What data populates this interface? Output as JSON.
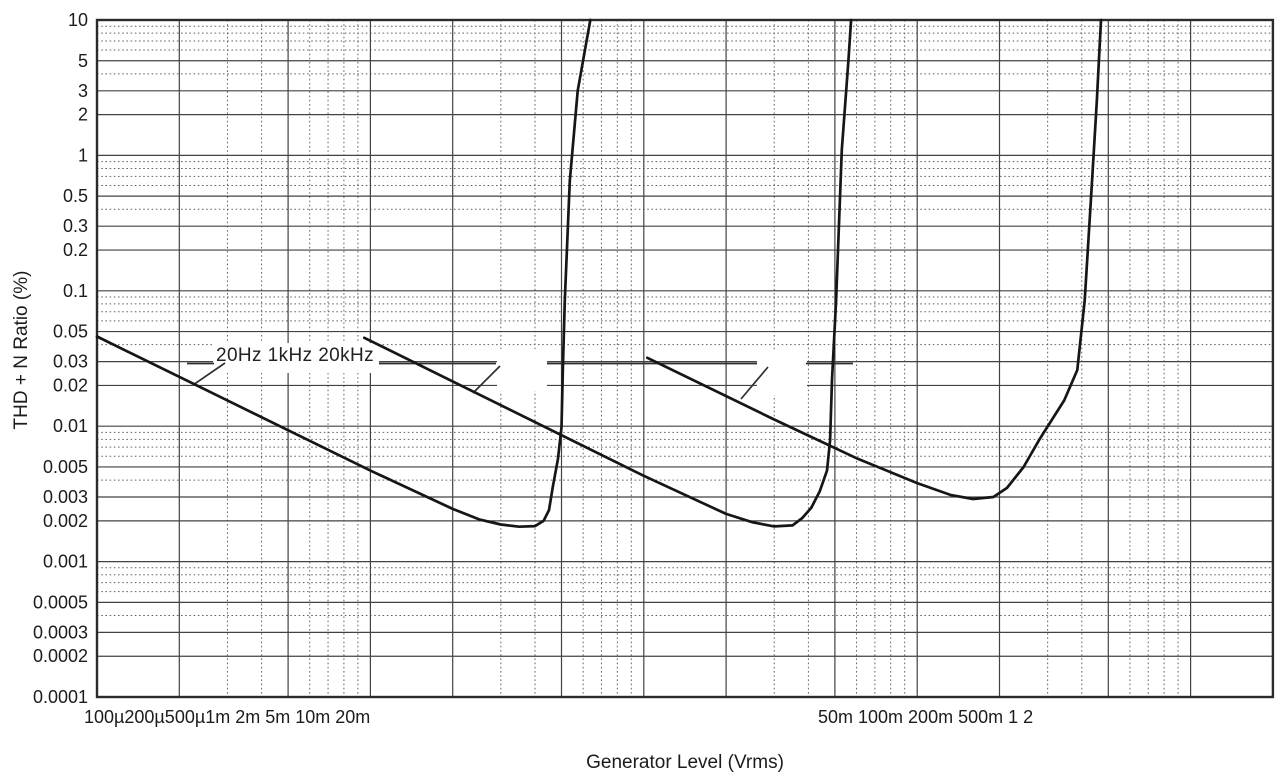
{
  "chart_data": {
    "type": "line",
    "title": "",
    "xlabel": "Generator Level (Vrms)",
    "ylabel": "THD + N Ratio (%)",
    "xscale": "log",
    "yscale": "log",
    "xlim": [
      0.0001,
      2
    ],
    "ylim": [
      0.0001,
      10
    ],
    "grid": true,
    "legend_position": "inside-top-left",
    "x_axis": {
      "major_ticks": [
        0.0001,
        0.0002,
        0.0005,
        0.001,
        0.002,
        0.005,
        0.01,
        0.02,
        0.05,
        0.1,
        0.2,
        0.5,
        1,
        2
      ],
      "minor_mantissas": [
        3,
        4,
        6,
        7,
        8,
        9
      ],
      "tick_label_group_left": "100µ200µ500µ1m 2m 5m 10m 20m",
      "tick_label_group_right": "50m 100m 200m 500m 1 2"
    },
    "y_axis": {
      "major_ticks": [
        10,
        5,
        3,
        2,
        1,
        0.5,
        0.3,
        0.2,
        0.1,
        0.05,
        0.03,
        0.02,
        0.01,
        0.005,
        0.003,
        0.002,
        0.001,
        0.0005,
        0.0003,
        0.0002,
        0.0001
      ],
      "major_tick_labels": [
        "10",
        "5",
        "3",
        "2",
        "1",
        "0.5",
        "0.3",
        "0.2",
        "0.1",
        "0.05",
        "0.03",
        "0.02",
        "0.01",
        "0.005",
        "0.003",
        "0.002",
        "0.001",
        "0.0005",
        "0.0003",
        "0.0002",
        "0.0001"
      ],
      "minor_mantissas": [
        4,
        6,
        7,
        8,
        9
      ]
    },
    "legend": {
      "text": "20Hz 1kHz 20kHz",
      "entries": [
        "20Hz",
        "1kHz",
        "20kHz"
      ]
    },
    "series": [
      {
        "name": "20Hz",
        "points": [
          [
            0.0001,
            0.046
          ],
          [
            0.0003,
            0.0155
          ],
          [
            0.001,
            0.0047
          ],
          [
            0.002,
            0.00245
          ],
          [
            0.0025,
            0.00205
          ],
          [
            0.003,
            0.00188
          ],
          [
            0.0035,
            0.00181
          ],
          [
            0.004,
            0.00183
          ],
          [
            0.0043,
            0.002
          ],
          [
            0.0045,
            0.0024
          ],
          [
            0.00465,
            0.0036
          ],
          [
            0.00485,
            0.0057
          ],
          [
            0.005,
            0.0098
          ],
          [
            0.00506,
            0.027
          ],
          [
            0.00514,
            0.085
          ],
          [
            0.00536,
            0.65
          ],
          [
            0.00573,
            3.0
          ],
          [
            0.00637,
            10
          ]
        ]
      },
      {
        "name": "1kHz",
        "points": [
          [
            0.00095,
            0.045
          ],
          [
            0.003,
            0.0143
          ],
          [
            0.01,
            0.0043
          ],
          [
            0.02,
            0.00225
          ],
          [
            0.025,
            0.00195
          ],
          [
            0.03,
            0.00182
          ],
          [
            0.035,
            0.00185
          ],
          [
            0.038,
            0.0021
          ],
          [
            0.041,
            0.0025
          ],
          [
            0.044,
            0.0033
          ],
          [
            0.0468,
            0.0047
          ],
          [
            0.048,
            0.0079
          ],
          [
            0.0488,
            0.022
          ],
          [
            0.0505,
            0.085
          ],
          [
            0.053,
            1.1
          ],
          [
            0.056,
            5.0
          ],
          [
            0.0573,
            10
          ]
        ]
      },
      {
        "name": "20kHz",
        "points": [
          [
            0.0103,
            0.032
          ],
          [
            0.03,
            0.0112
          ],
          [
            0.06,
            0.0058
          ],
          [
            0.1,
            0.0038
          ],
          [
            0.133,
            0.0031
          ],
          [
            0.16,
            0.0029
          ],
          [
            0.19,
            0.003
          ],
          [
            0.213,
            0.0035
          ],
          [
            0.245,
            0.005
          ],
          [
            0.28,
            0.008
          ],
          [
            0.345,
            0.0155
          ],
          [
            0.385,
            0.026
          ],
          [
            0.41,
            0.085
          ],
          [
            0.432,
            0.47
          ],
          [
            0.454,
            2.5
          ],
          [
            0.47,
            10
          ]
        ]
      }
    ]
  },
  "style": {
    "background": "#ffffff",
    "curve_color": "#161616",
    "grid_major_color": "#424242",
    "grid_minor_color": "#636363",
    "border_color": "#2b2b2b",
    "text_color": "#1c1c1c",
    "annotation_color": "#2f2f2f"
  }
}
